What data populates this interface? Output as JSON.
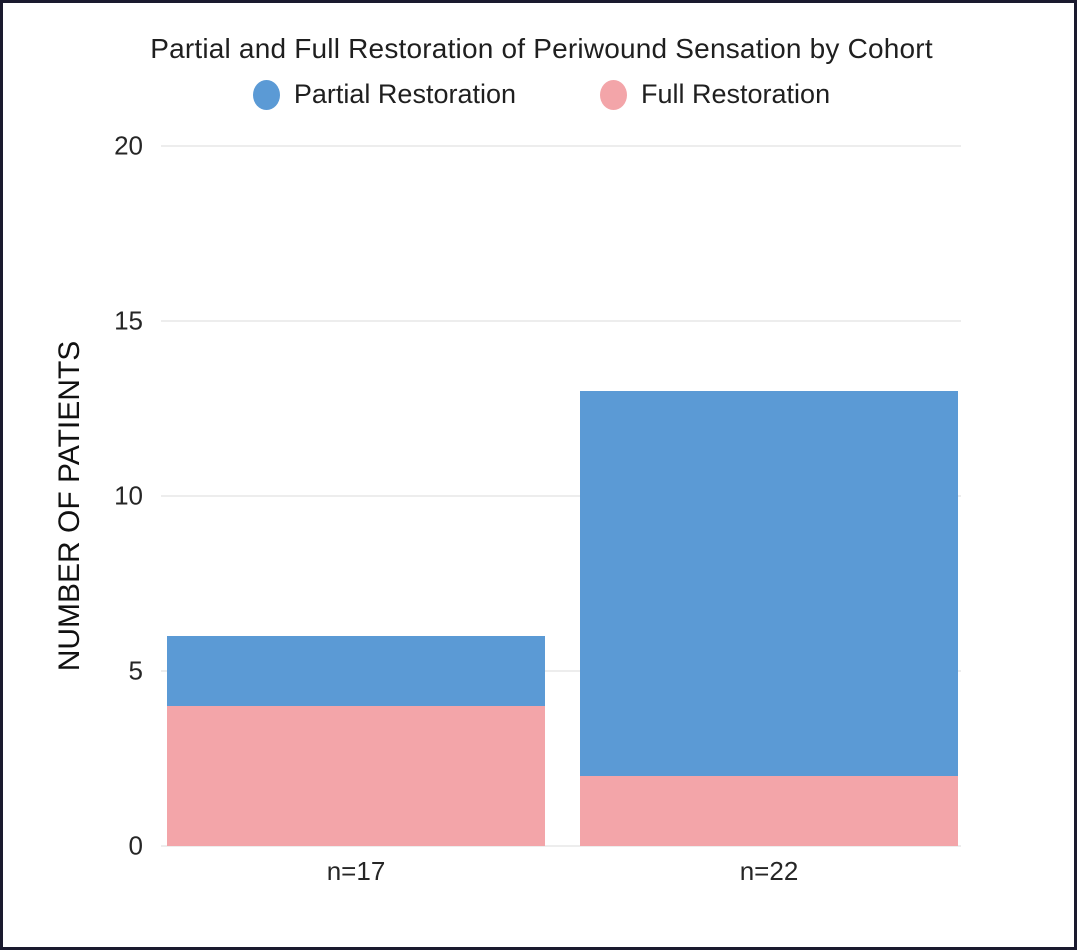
{
  "page": {
    "background": "#ffffff",
    "border_color": "#1a1a2e"
  },
  "chart_data": {
    "type": "bar",
    "stacked": true,
    "title": "Partial and Full Restoration of Periwound Sensation by Cohort",
    "categories": [
      "n=17",
      "n=22"
    ],
    "series": [
      {
        "name": "Partial Restoration",
        "color": "#5b9ad5",
        "values": [
          6,
          13
        ]
      },
      {
        "name": "Full Restoration",
        "color": "#f3a5a9",
        "values": [
          4,
          2
        ]
      }
    ],
    "xlabel": "",
    "ylabel": "NUMBER OF PATIENTS",
    "yticks": [
      0,
      5,
      10,
      15,
      20
    ],
    "ylim": [
      0,
      20
    ],
    "grid": "horizontal",
    "legend_position": "top",
    "text_color": "#1f1f1f",
    "grid_color": "#ededed"
  }
}
